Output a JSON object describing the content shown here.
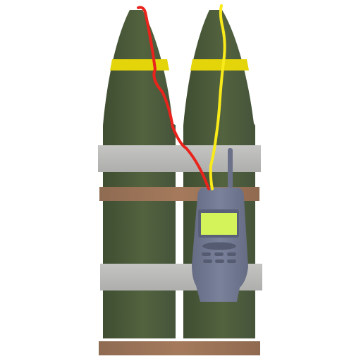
{
  "item": {
    "icon": "explosive-shells-with-phone-detonator-icon",
    "shell_count": 2,
    "phone_screen_text": ""
  },
  "colors": {
    "background": "#ffffff",
    "shell_body": "#4d5c3b",
    "shell_stripe": "#e4d40a",
    "strap_band": "#b9bab8",
    "wood_band": "#9a7155",
    "phone_body": "#727a93",
    "phone_screen": "#d4f35b",
    "wire_red": "#e8241c",
    "wire_yellow": "#f9ea1a"
  }
}
